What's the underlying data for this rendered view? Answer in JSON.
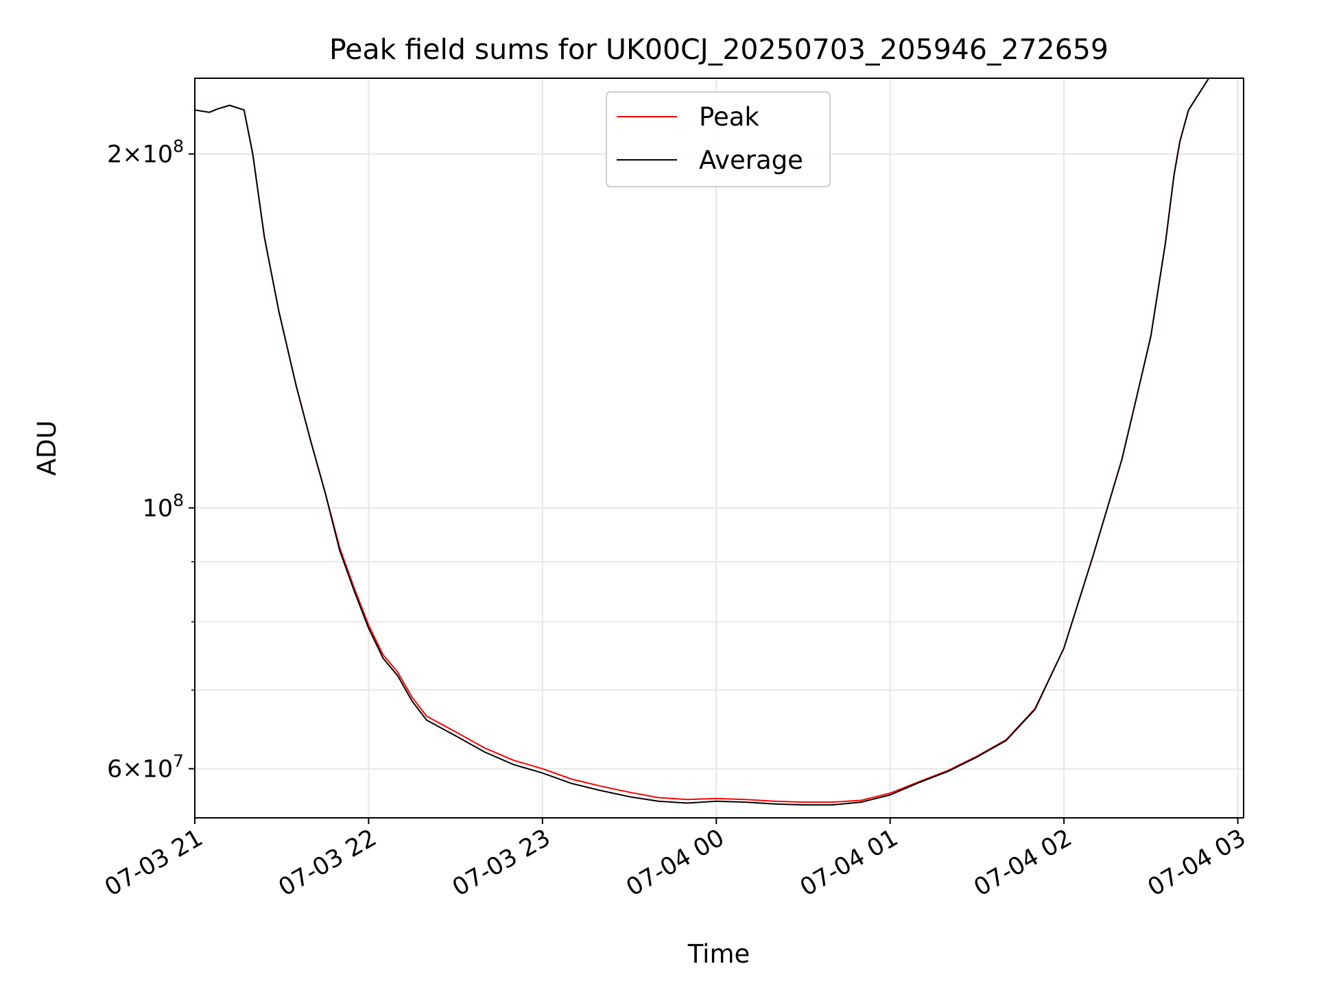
{
  "chart_data": {
    "type": "line",
    "title": "Peak field sums for UK00CJ_20250703_205946_272659",
    "xlabel": "Time",
    "ylabel": "ADU",
    "yscale": "log",
    "xlim": [
      "2025-07-03 21:00",
      "2025-07-04 03:02"
    ],
    "ylim": [
      54500000,
      232000000
    ],
    "x_ticks": [
      {
        "t": "2025-07-03 21:00",
        "label": "07-03 21"
      },
      {
        "t": "2025-07-03 22:00",
        "label": "07-03 22"
      },
      {
        "t": "2025-07-03 23:00",
        "label": "07-03 23"
      },
      {
        "t": "2025-07-04 00:00",
        "label": "07-04 00"
      },
      {
        "t": "2025-07-04 01:00",
        "label": "07-04 01"
      },
      {
        "t": "2025-07-04 02:00",
        "label": "07-04 02"
      },
      {
        "t": "2025-07-04 03:00",
        "label": "07-04 03"
      }
    ],
    "y_major_ticks": [
      {
        "value": 60000000,
        "mantissa": "6",
        "exponent": "7"
      },
      {
        "value": 100000000,
        "mantissa": "",
        "exponent": "8"
      },
      {
        "value": 200000000,
        "mantissa": "2",
        "exponent": "8"
      }
    ],
    "y_minor_ticks": [
      70000000,
      80000000,
      90000000
    ],
    "grid": true,
    "legend": {
      "position": "top-center"
    },
    "series": [
      {
        "name": "Peak",
        "color": "#ff0000",
        "x": [
          "2025-07-03 21:00",
          "2025-07-03 21:05",
          "2025-07-03 21:08",
          "2025-07-03 21:12",
          "2025-07-03 21:17",
          "2025-07-03 21:20",
          "2025-07-03 21:24",
          "2025-07-03 21:29",
          "2025-07-03 21:35",
          "2025-07-03 21:40",
          "2025-07-03 21:45",
          "2025-07-03 21:50",
          "2025-07-03 21:55",
          "2025-07-03 22:00",
          "2025-07-03 22:05",
          "2025-07-03 22:10",
          "2025-07-03 22:15",
          "2025-07-03 22:20",
          "2025-07-03 22:30",
          "2025-07-03 22:40",
          "2025-07-03 22:50",
          "2025-07-03 23:00",
          "2025-07-03 23:10",
          "2025-07-03 23:20",
          "2025-07-03 23:30",
          "2025-07-03 23:40",
          "2025-07-03 23:50",
          "2025-07-04 00:00",
          "2025-07-04 00:10",
          "2025-07-04 00:20",
          "2025-07-04 00:30",
          "2025-07-04 00:40",
          "2025-07-04 00:50",
          "2025-07-04 01:00",
          "2025-07-04 01:10",
          "2025-07-04 01:20",
          "2025-07-04 01:30",
          "2025-07-04 01:40",
          "2025-07-04 01:50",
          "2025-07-04 02:00",
          "2025-07-04 02:10",
          "2025-07-04 02:20",
          "2025-07-04 02:25",
          "2025-07-04 02:30",
          "2025-07-04 02:35",
          "2025-07-04 02:38",
          "2025-07-04 02:40",
          "2025-07-04 02:43",
          "2025-07-04 02:50",
          "2025-07-04 03:02"
        ],
        "y": [
          218000000,
          217000000,
          218500000,
          220000000,
          218000000,
          200000000,
          170000000,
          147000000,
          127000000,
          114000000,
          103000000,
          92500000,
          85500000,
          79500000,
          75000000,
          72500000,
          69000000,
          66500000,
          64500000,
          62500000,
          61000000,
          60000000,
          58800000,
          58000000,
          57300000,
          56700000,
          56500000,
          56600000,
          56500000,
          56300000,
          56200000,
          56200000,
          56400000,
          57200000,
          58500000,
          59800000,
          61500000,
          63500000,
          67500000,
          76000000,
          91000000,
          110000000,
          124000000,
          140000000,
          168000000,
          192000000,
          205000000,
          218000000,
          232000000,
          232000000
        ]
      },
      {
        "name": "Average",
        "color": "#000000",
        "x": [
          "2025-07-03 21:00",
          "2025-07-03 21:05",
          "2025-07-03 21:08",
          "2025-07-03 21:12",
          "2025-07-03 21:17",
          "2025-07-03 21:20",
          "2025-07-03 21:24",
          "2025-07-03 21:29",
          "2025-07-03 21:35",
          "2025-07-03 21:40",
          "2025-07-03 21:45",
          "2025-07-03 21:50",
          "2025-07-03 21:55",
          "2025-07-03 22:00",
          "2025-07-03 22:05",
          "2025-07-03 22:10",
          "2025-07-03 22:15",
          "2025-07-03 22:20",
          "2025-07-03 22:30",
          "2025-07-03 22:40",
          "2025-07-03 22:50",
          "2025-07-03 23:00",
          "2025-07-03 23:10",
          "2025-07-03 23:20",
          "2025-07-03 23:30",
          "2025-07-03 23:40",
          "2025-07-03 23:50",
          "2025-07-04 00:00",
          "2025-07-04 00:10",
          "2025-07-04 00:20",
          "2025-07-04 00:30",
          "2025-07-04 00:40",
          "2025-07-04 00:50",
          "2025-07-04 01:00",
          "2025-07-04 01:10",
          "2025-07-04 01:20",
          "2025-07-04 01:30",
          "2025-07-04 01:40",
          "2025-07-04 01:50",
          "2025-07-04 02:00",
          "2025-07-04 02:10",
          "2025-07-04 02:20",
          "2025-07-04 02:25",
          "2025-07-04 02:30",
          "2025-07-04 02:35",
          "2025-07-04 02:38",
          "2025-07-04 02:40",
          "2025-07-04 02:43",
          "2025-07-04 02:50",
          "2025-07-04 03:02"
        ],
        "y": [
          218000000,
          217000000,
          218500000,
          220000000,
          218000000,
          200000000,
          170000000,
          147000000,
          127000000,
          114000000,
          103000000,
          92000000,
          85000000,
          79000000,
          74500000,
          72000000,
          68500000,
          66000000,
          64000000,
          62000000,
          60500000,
          59500000,
          58300000,
          57500000,
          56800000,
          56300000,
          56100000,
          56300000,
          56200000,
          56000000,
          55900000,
          55900000,
          56200000,
          57000000,
          58400000,
          59700000,
          61400000,
          63400000,
          67400000,
          76000000,
          91000000,
          110000000,
          124000000,
          140000000,
          168000000,
          192000000,
          205000000,
          218000000,
          232000000,
          232000000
        ]
      }
    ]
  }
}
